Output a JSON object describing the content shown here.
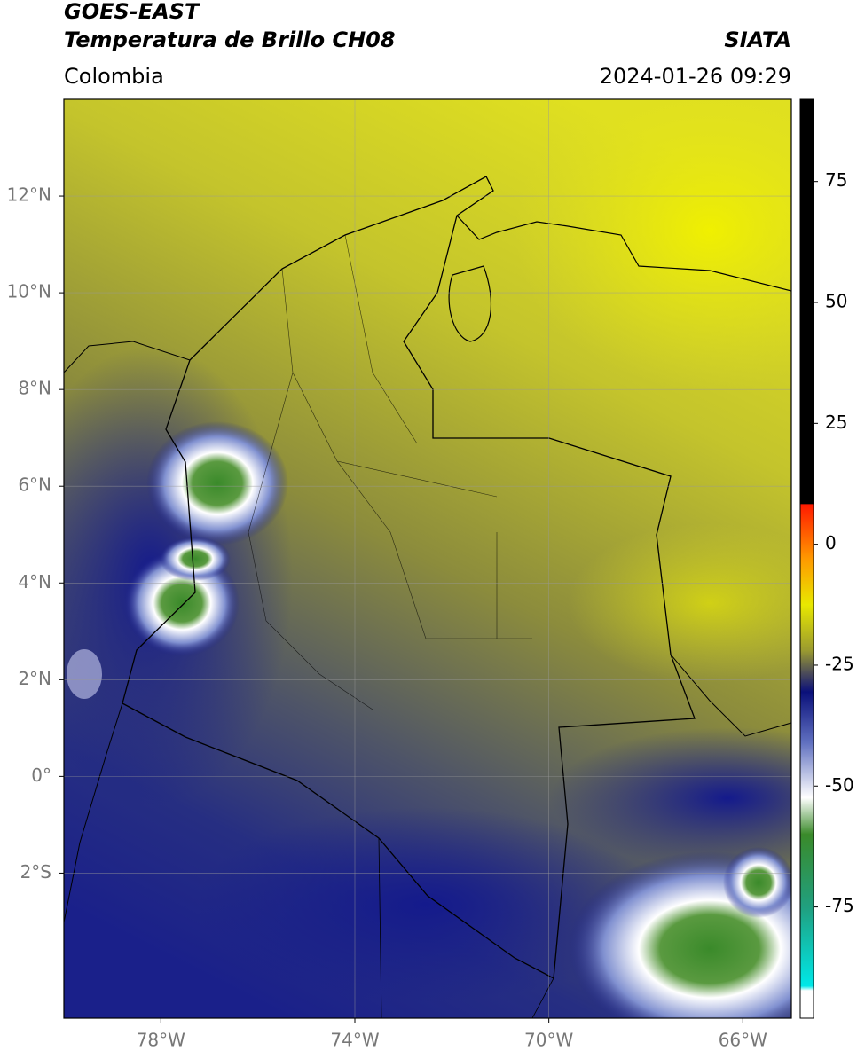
{
  "header": {
    "title": "GOES-EAST",
    "subtitle": "Temperatura de Brillo CH08",
    "region": "Colombia",
    "source": "SIATA",
    "datetime": "2024-01-26 09:29"
  },
  "map": {
    "xlim": [
      -80,
      -65
    ],
    "ylim": [
      -5,
      14
    ],
    "grid": true,
    "lon_ticks": [
      {
        "value": -78,
        "label": "78°W"
      },
      {
        "value": -74,
        "label": "74°W"
      },
      {
        "value": -70,
        "label": "70°W"
      },
      {
        "value": -66,
        "label": "66°W"
      }
    ],
    "lat_ticks": [
      {
        "value": 12,
        "label": "12°N"
      },
      {
        "value": 10,
        "label": "10°N"
      },
      {
        "value": 8,
        "label": "8°N"
      },
      {
        "value": 6,
        "label": "6°N"
      },
      {
        "value": 4,
        "label": "4°N"
      },
      {
        "value": 2,
        "label": "2°N"
      },
      {
        "value": 0,
        "label": "0°"
      },
      {
        "value": -2,
        "label": "2°S"
      }
    ]
  },
  "colorbar": {
    "lim": [
      -98,
      92
    ],
    "ticks": [
      75,
      50,
      25,
      0,
      -25,
      -50,
      -75
    ]
  }
}
